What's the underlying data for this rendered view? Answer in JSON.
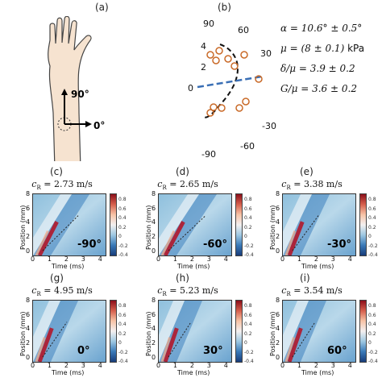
{
  "panels": {
    "a": "(a)",
    "b": "(b)",
    "c": "(c)",
    "d": "(d)",
    "e": "(e)",
    "g": "(g)",
    "h": "(h)",
    "i": "(i)"
  },
  "arm": {
    "label_90": "90°",
    "label_0": "0°"
  },
  "polar": {
    "angle_labels": [
      "90",
      "60",
      "30",
      "0",
      "-30",
      "-60",
      "-90"
    ],
    "radial_labels": [
      "4",
      "2"
    ]
  },
  "params": {
    "alpha": "α = 10.6° ± 0.5°",
    "mu_sym": "μ = (8 ± 0.1)",
    "mu_unit": "kPa",
    "delta": "δ/μ = 3.9 ± 0.2",
    "G": "G/μ = 3.6 ± 0.2"
  },
  "plots": [
    {
      "id": "c",
      "cr": "c",
      "cr_sub": "R",
      "value": " = 2.73 m/s",
      "angle": "-90°"
    },
    {
      "id": "d",
      "cr": "c",
      "cr_sub": "R",
      "value": " = 2.65 m/s",
      "angle": "-60°"
    },
    {
      "id": "e",
      "cr": "c",
      "cr_sub": "R",
      "value": " = 3.38 m/s",
      "angle": "-30°"
    },
    {
      "id": "g",
      "cr": "c",
      "cr_sub": "R",
      "value": " = 4.95 m/s",
      "angle": "0°"
    },
    {
      "id": "h",
      "cr": "c",
      "cr_sub": "R",
      "value": " = 5.23 m/s",
      "angle": "30°"
    },
    {
      "id": "i",
      "cr": "c",
      "cr_sub": "R",
      "value": " = 3.54 m/s",
      "angle": "60°"
    }
  ],
  "axes": {
    "ylabel": "Position (mm)",
    "xlabel": "Time (ms)",
    "yticks": [
      "8",
      "6",
      "4",
      "2",
      "0"
    ],
    "xticks": [
      "0",
      "1",
      "2",
      "3",
      "4"
    ],
    "cticks": [
      "0.8",
      "0.6",
      "0.4",
      "0.2",
      "0",
      "-0.2",
      "-0.4"
    ]
  }
}
